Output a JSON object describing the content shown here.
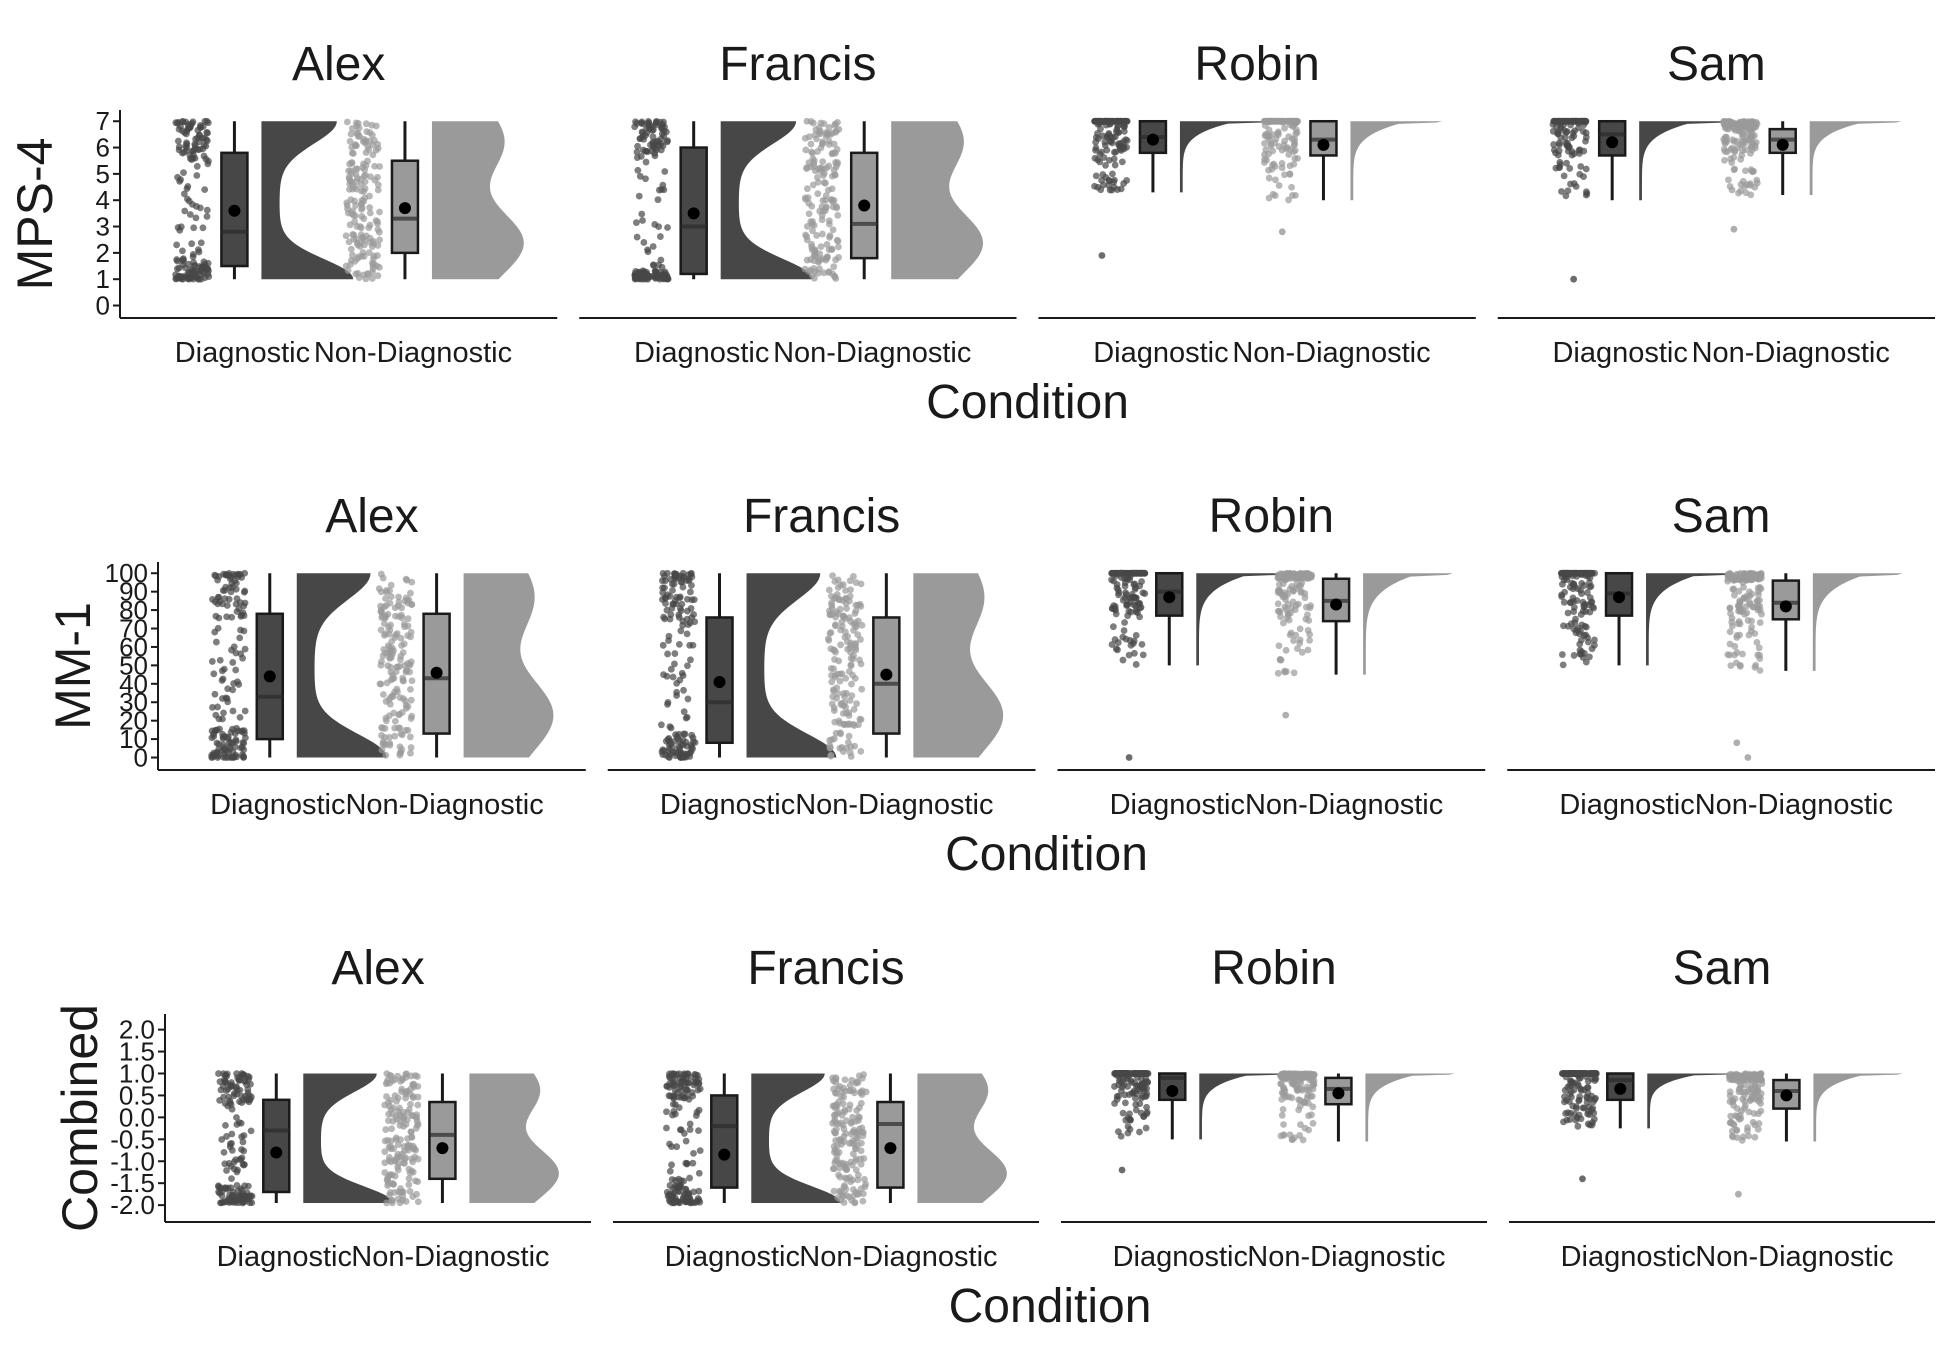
{
  "chart_data": [
    {
      "type": "raincloud",
      "ylabel": "MPS-4",
      "xlabel": "Condition",
      "ylim": [
        0,
        7
      ],
      "yticks": [
        0,
        1,
        2,
        3,
        4,
        5,
        6,
        7
      ],
      "categories": [
        "Diagnostic",
        "Non-Diagnostic"
      ],
      "panels": [
        {
          "title": "Alex",
          "groups": [
            {
              "name": "Diagnostic",
              "min": 1,
              "q1": 1.5,
              "median": 2.8,
              "q3": 5.8,
              "max": 7,
              "mean": 3.6,
              "shape": "bimodal"
            },
            {
              "name": "Non-Diagnostic",
              "min": 1,
              "q1": 2.0,
              "median": 3.3,
              "q3": 5.5,
              "max": 7,
              "mean": 3.7,
              "shape": "flat"
            }
          ]
        },
        {
          "title": "Francis",
          "groups": [
            {
              "name": "Diagnostic",
              "min": 1,
              "q1": 1.2,
              "median": 3.0,
              "q3": 6.0,
              "max": 7,
              "mean": 3.5,
              "shape": "bimodal"
            },
            {
              "name": "Non-Diagnostic",
              "min": 1,
              "q1": 1.8,
              "median": 3.1,
              "q3": 5.8,
              "max": 7,
              "mean": 3.8,
              "shape": "flat"
            }
          ]
        },
        {
          "title": "Robin",
          "groups": [
            {
              "name": "Diagnostic",
              "min": 4.3,
              "q1": 5.8,
              "median": 6.4,
              "q3": 7,
              "max": 7,
              "mean": 6.3,
              "outliers": [
                1.9
              ],
              "shape": "ceiling"
            },
            {
              "name": "Non-Diagnostic",
              "min": 4.0,
              "q1": 5.7,
              "median": 6.3,
              "q3": 7,
              "max": 7,
              "mean": 6.1,
              "outliers": [
                2.8
              ],
              "shape": "ceiling"
            }
          ]
        },
        {
          "title": "Sam",
          "groups": [
            {
              "name": "Diagnostic",
              "min": 4.0,
              "q1": 5.7,
              "median": 6.5,
              "q3": 7,
              "max": 7,
              "mean": 6.2,
              "outliers": [
                1.0
              ],
              "shape": "ceiling"
            },
            {
              "name": "Non-Diagnostic",
              "min": 4.2,
              "q1": 5.8,
              "median": 6.3,
              "q3": 6.7,
              "max": 7,
              "mean": 6.1,
              "outliers": [
                2.9
              ],
              "shape": "ceiling"
            }
          ]
        }
      ]
    },
    {
      "type": "raincloud",
      "ylabel": "MM-1",
      "xlabel": "Condition",
      "ylim": [
        0,
        100
      ],
      "yticks": [
        0,
        10,
        20,
        30,
        40,
        50,
        60,
        70,
        80,
        90,
        100
      ],
      "categories": [
        "Diagnostic",
        "Non-Diagnostic"
      ],
      "panels": [
        {
          "title": "Alex",
          "groups": [
            {
              "name": "Diagnostic",
              "min": 0,
              "q1": 10,
              "median": 33,
              "q3": 78,
              "max": 100,
              "mean": 44,
              "shape": "bimodal"
            },
            {
              "name": "Non-Diagnostic",
              "min": 0,
              "q1": 13,
              "median": 43,
              "q3": 78,
              "max": 100,
              "mean": 46,
              "shape": "flat"
            }
          ]
        },
        {
          "title": "Francis",
          "groups": [
            {
              "name": "Diagnostic",
              "min": 0,
              "q1": 8,
              "median": 30,
              "q3": 76,
              "max": 100,
              "mean": 41,
              "shape": "bimodal"
            },
            {
              "name": "Non-Diagnostic",
              "min": 0,
              "q1": 13,
              "median": 40,
              "q3": 76,
              "max": 100,
              "mean": 45,
              "shape": "flat"
            }
          ]
        },
        {
          "title": "Robin",
          "groups": [
            {
              "name": "Diagnostic",
              "min": 50,
              "q1": 77,
              "median": 90,
              "q3": 100,
              "max": 100,
              "mean": 87,
              "outliers": [
                0
              ],
              "shape": "ceiling"
            },
            {
              "name": "Non-Diagnostic",
              "min": 45,
              "q1": 74,
              "median": 85,
              "q3": 97,
              "max": 100,
              "mean": 83,
              "outliers": [
                23
              ],
              "shape": "ceiling"
            }
          ]
        },
        {
          "title": "Sam",
          "groups": [
            {
              "name": "Diagnostic",
              "min": 50,
              "q1": 77,
              "median": 89,
              "q3": 100,
              "max": 100,
              "mean": 87,
              "shape": "ceiling"
            },
            {
              "name": "Non-Diagnostic",
              "min": 47,
              "q1": 75,
              "median": 84,
              "q3": 96,
              "max": 100,
              "mean": 82,
              "outliers": [
                0,
                8
              ],
              "shape": "ceiling"
            }
          ]
        }
      ]
    },
    {
      "type": "raincloud",
      "ylabel": "Combined",
      "xlabel": "Condition",
      "ylim": [
        -2.1,
        2.1
      ],
      "yticks": [
        -2.0,
        -1.5,
        -1.0,
        -0.5,
        0.0,
        0.5,
        1.0,
        1.5,
        2.0
      ],
      "yticklabels": [
        "-2.0",
        "-1.5",
        "-1.0",
        "-0.5",
        "0.0",
        "0.5",
        "1.0",
        "1.5",
        "2.0"
      ],
      "categories": [
        "Diagnostic",
        "Non-Diagnostic"
      ],
      "panels": [
        {
          "title": "Alex",
          "groups": [
            {
              "name": "Diagnostic",
              "min": -1.95,
              "q1": -1.7,
              "median": -0.3,
              "q3": 0.4,
              "max": 1.0,
              "mean": -0.8,
              "shape": "bimodal"
            },
            {
              "name": "Non-Diagnostic",
              "min": -1.95,
              "q1": -1.4,
              "median": -0.4,
              "q3": 0.35,
              "max": 1.0,
              "mean": -0.7,
              "shape": "flat"
            }
          ]
        },
        {
          "title": "Francis",
          "groups": [
            {
              "name": "Diagnostic",
              "min": -1.95,
              "q1": -1.6,
              "median": -0.2,
              "q3": 0.5,
              "max": 1.0,
              "mean": -0.85,
              "shape": "bimodal"
            },
            {
              "name": "Non-Diagnostic",
              "min": -1.95,
              "q1": -1.6,
              "median": -0.15,
              "q3": 0.35,
              "max": 1.0,
              "mean": -0.7,
              "shape": "flat"
            }
          ]
        },
        {
          "title": "Robin",
          "groups": [
            {
              "name": "Diagnostic",
              "min": -0.5,
              "q1": 0.4,
              "median": 0.9,
              "q3": 1.0,
              "max": 1.0,
              "mean": 0.6,
              "outliers": [
                -1.2
              ],
              "shape": "ceiling"
            },
            {
              "name": "Non-Diagnostic",
              "min": -0.55,
              "q1": 0.3,
              "median": 0.65,
              "q3": 0.9,
              "max": 1.0,
              "mean": 0.55,
              "shape": "ceiling"
            }
          ]
        },
        {
          "title": "Sam",
          "groups": [
            {
              "name": "Diagnostic",
              "min": -0.25,
              "q1": 0.4,
              "median": 0.85,
              "q3": 1.0,
              "max": 1.0,
              "mean": 0.65,
              "outliers": [
                -1.4
              ],
              "shape": "ceiling"
            },
            {
              "name": "Non-Diagnostic",
              "min": -0.55,
              "q1": 0.2,
              "median": 0.6,
              "q3": 0.85,
              "max": 1.0,
              "mean": 0.5,
              "outliers": [
                -1.75
              ],
              "shape": "ceiling"
            }
          ]
        }
      ]
    }
  ],
  "colors": {
    "diagnostic": "#474747",
    "non_diagnostic": "#9a9a9a",
    "mean": "#000000",
    "axis": "#1a1a1a"
  }
}
